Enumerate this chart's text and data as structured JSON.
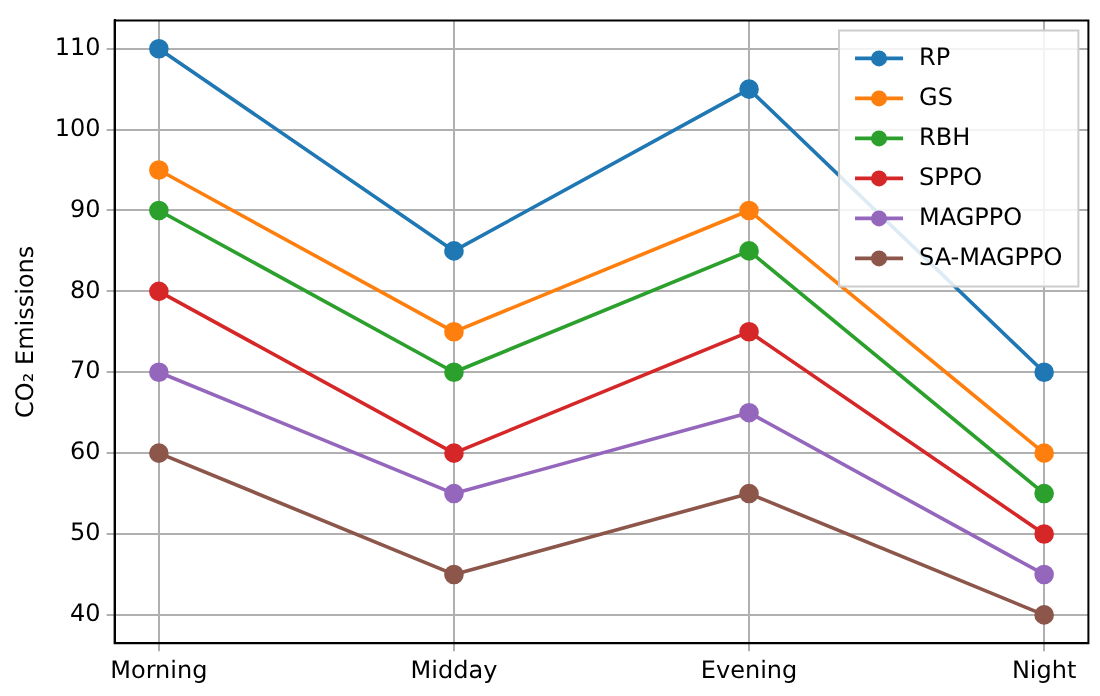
{
  "chart_data": {
    "type": "line",
    "ylabel": "CO₂ Emissions",
    "categories": [
      "Morning",
      "Midday",
      "Evening",
      "Night"
    ],
    "ylim": [
      36.5,
      113.5
    ],
    "yticks": [
      40,
      50,
      60,
      70,
      80,
      90,
      100,
      110
    ],
    "grid": true,
    "legend": "top right",
    "marker": "circle",
    "line_style": "solid",
    "series": [
      {
        "name": "RP",
        "color": "#1f77b4",
        "values": [
          110,
          85,
          105,
          70
        ]
      },
      {
        "name": "GS",
        "color": "#ff7f0e",
        "values": [
          95,
          75,
          90,
          60
        ]
      },
      {
        "name": "RBH",
        "color": "#2ca02c",
        "values": [
          90,
          70,
          85,
          55
        ]
      },
      {
        "name": "SPPO",
        "color": "#d62728",
        "values": [
          80,
          60,
          75,
          50
        ]
      },
      {
        "name": "MAGPPO",
        "color": "#9467bd",
        "values": [
          70,
          55,
          65,
          45
        ]
      },
      {
        "name": "SA-MAGPPO",
        "color": "#8c564b",
        "values": [
          60,
          45,
          55,
          40
        ]
      }
    ]
  }
}
